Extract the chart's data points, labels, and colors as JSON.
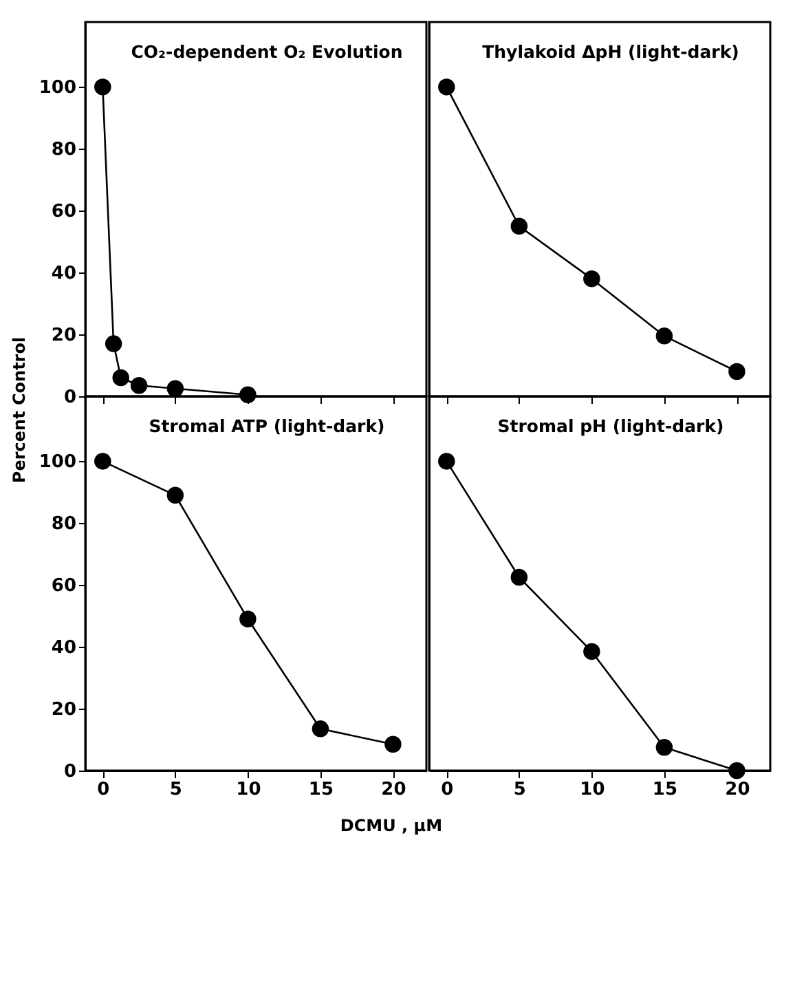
{
  "chart_data": [
    {
      "type": "line",
      "title": "CO₂-dependent O₂ Evolution",
      "ylabel": "Percent Control",
      "x": [
        0,
        0.75,
        1.25,
        2.5,
        5,
        10
      ],
      "values": [
        100,
        17,
        6,
        3.5,
        2.5,
        0.5
      ],
      "color": "#000000",
      "marker": "circle",
      "line_style": "solid",
      "xlim": [
        -1.2,
        22.3
      ],
      "ylim": [
        0,
        121
      ],
      "xticks": [
        0,
        5,
        10,
        15,
        20
      ],
      "yticks": [
        0,
        20,
        40,
        60,
        80,
        100
      ],
      "tick_labels": "y",
      "grid": false
    },
    {
      "type": "line",
      "title": "Thylakoid ΔpH (light-dark)",
      "x": [
        0,
        5,
        10,
        15,
        20
      ],
      "values": [
        100,
        55,
        38,
        19.5,
        8
      ],
      "color": "#000000",
      "marker": "circle",
      "line_style": "solid",
      "xlim": [
        -1.2,
        22.3
      ],
      "ylim": [
        0,
        121
      ],
      "xticks": [
        0,
        5,
        10,
        15,
        20
      ],
      "yticks": [
        0,
        20,
        40,
        60,
        80,
        100
      ],
      "tick_labels": false,
      "grid": false
    },
    {
      "type": "line",
      "title": "Stromal ATP (light-dark)",
      "xlabel": "DCMU , µM",
      "x": [
        0,
        5,
        10,
        15,
        20
      ],
      "values": [
        100,
        89,
        49,
        13.5,
        8.5
      ],
      "color": "#000000",
      "marker": "circle",
      "line_style": "solid",
      "xlim": [
        -1.2,
        22.3
      ],
      "ylim": [
        0,
        121
      ],
      "xticks": [
        0,
        5,
        10,
        15,
        20
      ],
      "yticks": [
        0,
        20,
        40,
        60,
        80,
        100
      ],
      "grid": false
    },
    {
      "type": "line",
      "title": "Stromal pH (light-dark)",
      "x": [
        0,
        5,
        10,
        15,
        20
      ],
      "values": [
        100,
        62.5,
        38.5,
        7.5,
        0
      ],
      "color": "#000000",
      "marker": "circle",
      "line_style": "solid",
      "xlim": [
        -1.2,
        22.3
      ],
      "ylim": [
        0,
        121
      ],
      "xticks": [
        0,
        5,
        10,
        15,
        20
      ],
      "yticks": [
        0,
        20,
        40,
        60,
        80,
        100
      ],
      "tick_labels": "x",
      "grid": false
    }
  ]
}
